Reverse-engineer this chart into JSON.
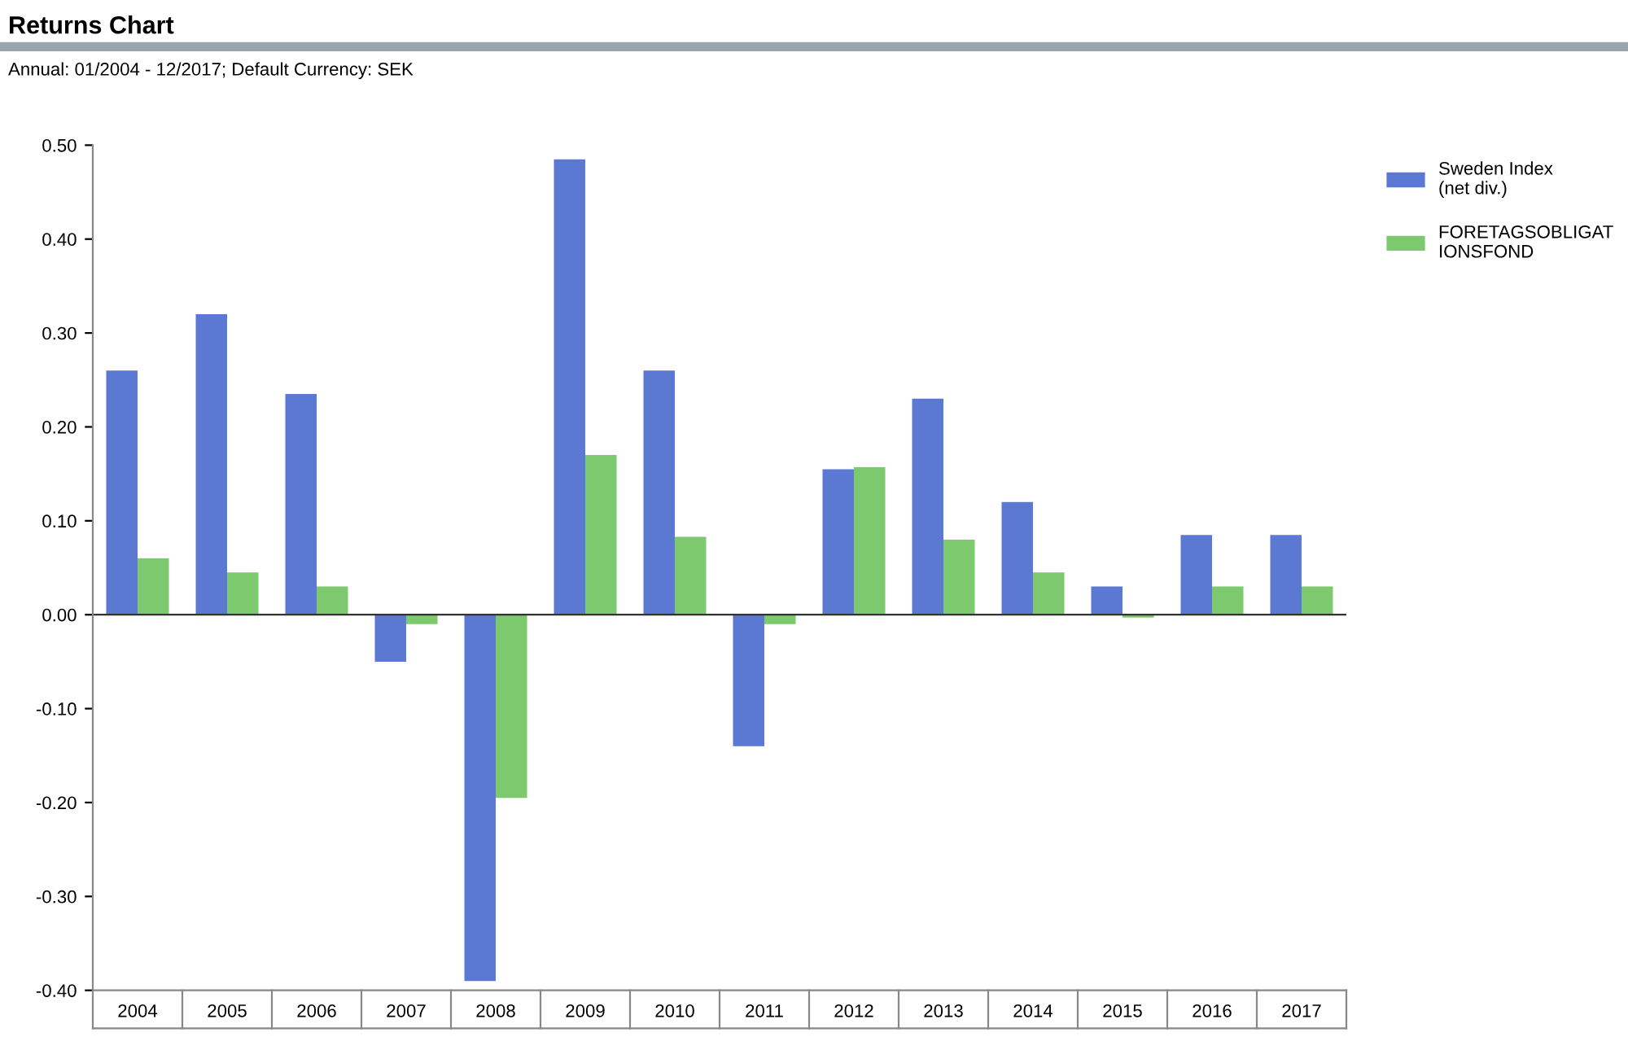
{
  "chart_data": {
    "type": "bar",
    "title": "Returns Chart",
    "subtitle": "Annual: 01/2004 - 12/2017; Default Currency: SEK",
    "categories": [
      "2004",
      "2005",
      "2006",
      "2007",
      "2008",
      "2009",
      "2010",
      "2011",
      "2012",
      "2013",
      "2014",
      "2015",
      "2016",
      "2017"
    ],
    "series": [
      {
        "name": "Sweden Index\n(net div.)",
        "color": "#5b78d2",
        "values": [
          0.26,
          0.32,
          0.235,
          -0.05,
          -0.39,
          0.485,
          0.26,
          -0.14,
          0.155,
          0.23,
          0.12,
          0.03,
          0.085,
          0.085
        ]
      },
      {
        "name": "FORETAGSOBLIGAT\nIONSFOND",
        "color": "#7dc96e",
        "values": [
          0.06,
          0.045,
          0.03,
          -0.01,
          -0.195,
          0.17,
          0.083,
          -0.01,
          0.157,
          0.08,
          0.045,
          -0.003,
          0.03,
          0.03
        ]
      }
    ],
    "ylim": [
      -0.4,
      0.5
    ],
    "yticks": [
      {
        "value": -0.4,
        "label": "-0.40"
      },
      {
        "value": -0.3,
        "label": "-0.30"
      },
      {
        "value": -0.2,
        "label": "-0.20"
      },
      {
        "value": -0.1,
        "label": "-0.10"
      },
      {
        "value": 0,
        "label": "0.00"
      },
      {
        "value": 0.1,
        "label": "0.10"
      },
      {
        "value": 0.2,
        "label": "0.20"
      },
      {
        "value": 0.3,
        "label": "0.30"
      },
      {
        "value": 0.4,
        "label": "0.40"
      },
      {
        "value": 0.5,
        "label": "0.50"
      }
    ],
    "ref_lines": [
      {
        "axis": "y",
        "value": 0,
        "color": "#333333"
      }
    ],
    "grid": false,
    "legend": "top right"
  }
}
